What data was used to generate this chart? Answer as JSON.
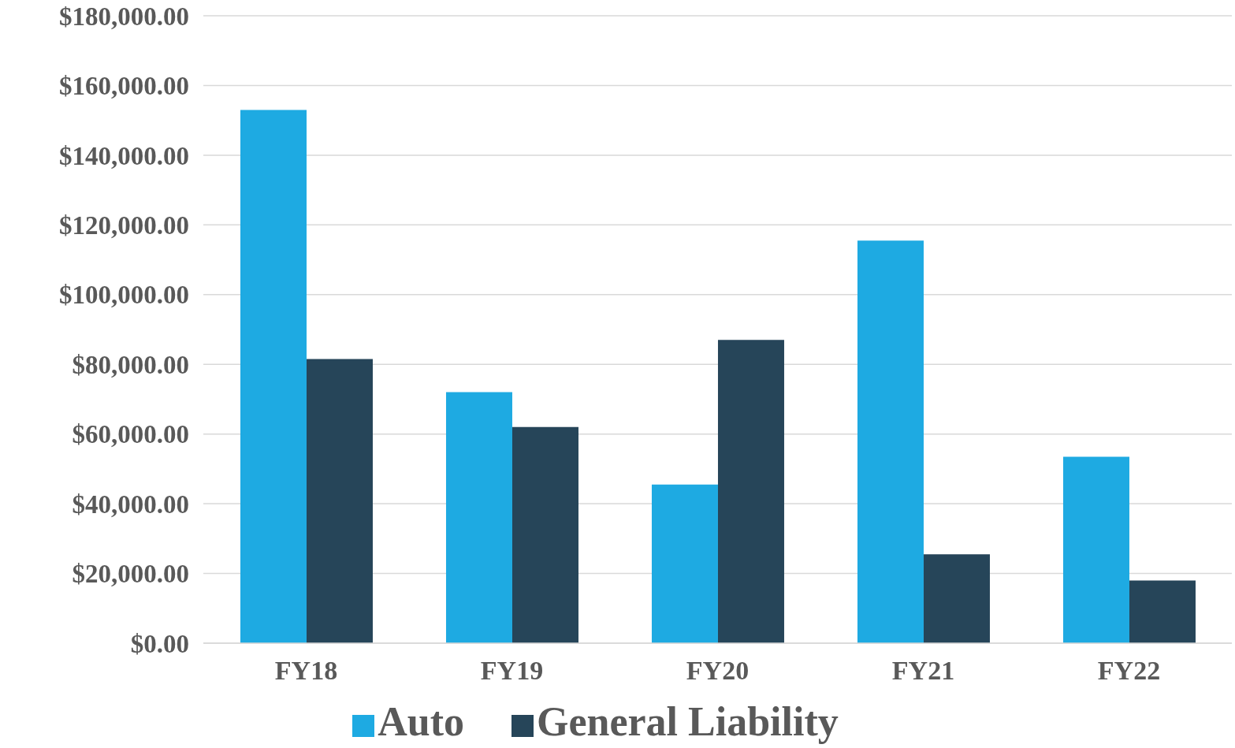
{
  "chart_data": {
    "type": "bar",
    "categories": [
      "FY18",
      "FY19",
      "FY20",
      "FY21",
      "FY22"
    ],
    "series": [
      {
        "name": "Auto",
        "color": "#1eaae2",
        "values": [
          153000,
          72000,
          45500,
          115500,
          53500
        ]
      },
      {
        "name": "General Liability",
        "color": "#264559",
        "values": [
          81500,
          62000,
          87000,
          25500,
          18000
        ]
      }
    ],
    "ylim": [
      0,
      180000
    ],
    "yticks": [
      {
        "value": 0,
        "label": "$0.00"
      },
      {
        "value": 20000,
        "label": "$20,000.00"
      },
      {
        "value": 40000,
        "label": "$40,000.00"
      },
      {
        "value": 60000,
        "label": "$60,000.00"
      },
      {
        "value": 80000,
        "label": "$80,000.00"
      },
      {
        "value": 100000,
        "label": "$100,000.00"
      },
      {
        "value": 120000,
        "label": "$120,000.00"
      },
      {
        "value": 140000,
        "label": "$140,000.00"
      },
      {
        "value": 160000,
        "label": "$160,000.00"
      },
      {
        "value": 180000,
        "label": "$180,000.00"
      }
    ],
    "grid": "y",
    "legend": "bottom"
  }
}
